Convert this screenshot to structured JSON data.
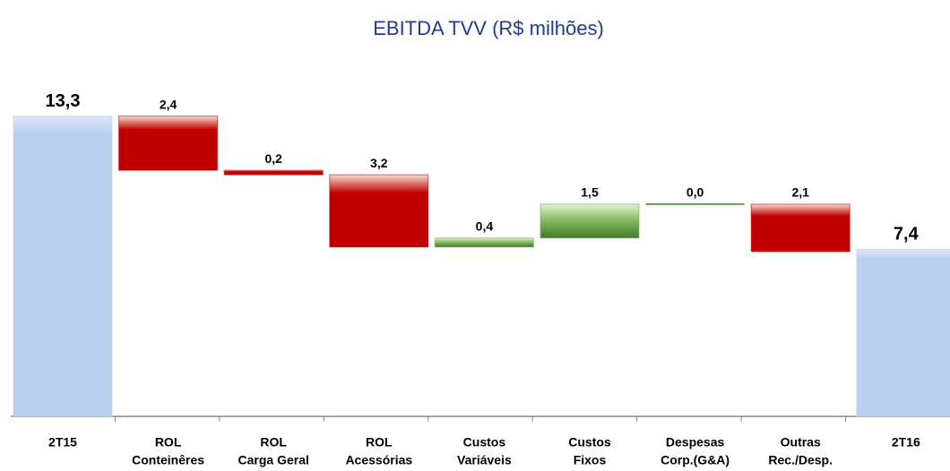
{
  "chart_data": {
    "type": "waterfall",
    "title": "EBITDA TVV (R$ milhões)",
    "categories": [
      [
        "2T15"
      ],
      [
        "ROL",
        "Conteinêres"
      ],
      [
        "ROL",
        "Carga Geral"
      ],
      [
        "ROL",
        "Acessórias"
      ],
      [
        "Custos",
        "Variáveis"
      ],
      [
        "Custos",
        "Fixos"
      ],
      [
        "Despesas",
        "Corp.(G&A)"
      ],
      [
        "Outras",
        "Rec./Desp."
      ],
      [
        "2T16"
      ]
    ],
    "measure": [
      "total",
      "relative",
      "relative",
      "relative",
      "relative",
      "relative",
      "relative",
      "relative",
      "total"
    ],
    "values": [
      13.3,
      -2.4,
      -0.2,
      -3.2,
      0.4,
      1.5,
      0.0,
      -2.1,
      7.4
    ],
    "value_labels": [
      "13,3",
      "2,4",
      "0,2",
      "3,2",
      "0,4",
      "1,5",
      "0,0",
      "2,1",
      "7,4"
    ],
    "colors": {
      "total": "#b9d1ee",
      "increase": "#6aa84f",
      "decrease": "#c00000"
    },
    "ylim": [
      0,
      14
    ]
  }
}
